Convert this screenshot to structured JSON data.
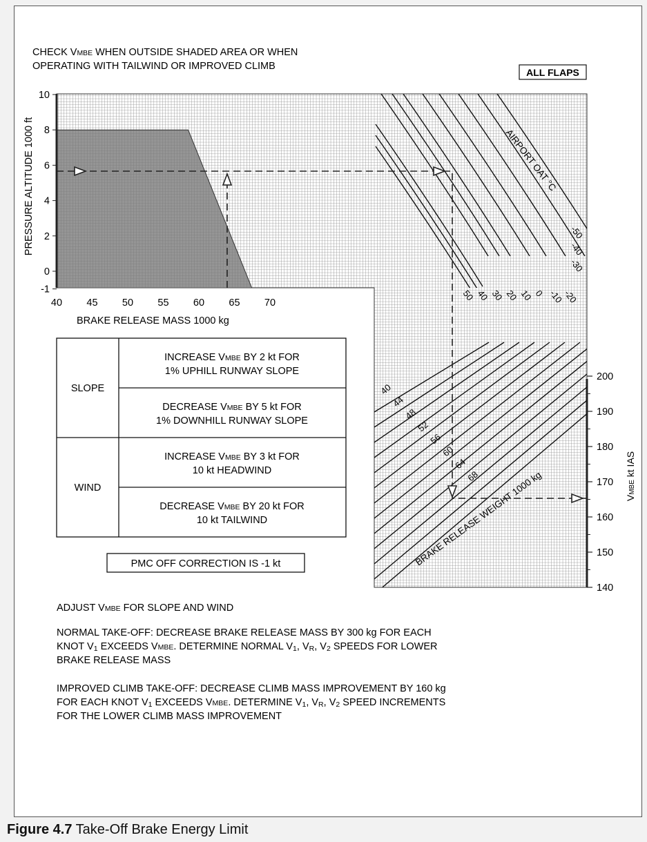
{
  "header": {
    "line1_pre": "CHECK V",
    "line1_sub": "MBE",
    "line1_post": " WHEN OUTSIDE SHADED AREA OR WHEN",
    "line2": "OPERATING WITH TAILWIND OR IMPROVED CLIMB",
    "flaps_box": "ALL FLAPS"
  },
  "chart_data": {
    "type": "line",
    "top_left": {
      "ylabel": "PRESSURE ALTITUDE 1000 ft",
      "xlabel": "BRAKE RELEASE MASS 1000 kg",
      "x_ticks": [
        "40",
        "45",
        "50",
        "55",
        "60",
        "65",
        "70"
      ],
      "y_ticks": [
        "10",
        "8",
        "6",
        "4",
        "2",
        "0",
        "-1"
      ],
      "xlim": [
        40,
        73
      ],
      "ylim": [
        -1,
        10
      ],
      "shaded_area": {
        "x": [
          40,
          58.5,
          67.5,
          40
        ],
        "y": [
          8,
          8,
          -1,
          -1
        ]
      }
    },
    "top_right": {
      "label": "AIRPORT OAT °C",
      "oat_labels_bottom": [
        "50",
        "40",
        "30",
        "20",
        "10",
        "0",
        "-10",
        "-20"
      ],
      "oat_labels_side": [
        "-50",
        "-40",
        "-30"
      ]
    },
    "bottom_right": {
      "label": "BRAKE RELEASE WEIGHT 1000 kg",
      "weight_labels": [
        "40",
        "44",
        "48",
        "52",
        "56",
        "60",
        "64",
        "68"
      ],
      "ylabel_pre": "V",
      "ylabel_sub": "MBE",
      "ylabel_post": " kt IAS",
      "y_ticks": [
        "200",
        "190",
        "180",
        "170",
        "160",
        "150",
        "140"
      ],
      "ylim": [
        140,
        200
      ]
    },
    "example": {
      "pressure_altitude": 5.6,
      "brake_release_mass": 64,
      "vmbe": 165
    }
  },
  "table": {
    "rows": [
      {
        "group": "SLOPE",
        "cells": [
          {
            "pre": "INCREASE V",
            "sub": "MBE",
            "post": " BY 2 kt FOR",
            "line2": "1% UPHILL RUNWAY SLOPE"
          },
          {
            "pre": "DECREASE V",
            "sub": "MBE",
            "post": " BY 5 kt FOR",
            "line2": "1% DOWNHILL RUNWAY SLOPE"
          }
        ]
      },
      {
        "group": "WIND",
        "cells": [
          {
            "pre": "INCREASE V",
            "sub": "MBE",
            "post": " BY 3 kt FOR",
            "line2": "10 kt HEADWIND"
          },
          {
            "pre": "DECREASE V",
            "sub": "MBE",
            "post": " BY 20 kt FOR",
            "line2": "10 kt TAILWIND"
          }
        ]
      }
    ]
  },
  "pmc_box": "PMC OFF CORRECTION IS -1 kt",
  "notes": {
    "adjust_pre": "ADJUST V",
    "adjust_sub": "MBE",
    "adjust_post": " FOR SLOPE AND WIND",
    "normal_l1": "NORMAL TAKE-OFF:   DECREASE BRAKE RELEASE MASS BY 300 kg FOR EACH",
    "normal_l2_a": "KNOT V",
    "normal_l2_b": "1",
    "normal_l2_c": " EXCEEDS V",
    "normal_l2_d": "MBE",
    "normal_l2_e": ".  DETERMINE NORMAL V",
    "normal_l2_f": "1",
    "normal_l2_g": ", V",
    "normal_l2_h": "R",
    "normal_l2_i": ", V",
    "normal_l2_j": "2",
    "normal_l2_k": " SPEEDS FOR LOWER",
    "normal_l3": "BRAKE RELEASE MASS",
    "improved_l1": "IMPROVED CLIMB TAKE-OFF:   DECREASE CLIMB MASS IMPROVEMENT BY 160 kg",
    "improved_l2_a": "FOR EACH KNOT V",
    "improved_l2_b": "1",
    "improved_l2_c": " EXCEEDS V",
    "improved_l2_d": "MBE",
    "improved_l2_e": ".  DETERMINE V",
    "improved_l2_f": "1",
    "improved_l2_g": ", V",
    "improved_l2_h": "R",
    "improved_l2_i": ", V",
    "improved_l2_j": "2",
    "improved_l2_k": " SPEED INCREMENTS",
    "improved_l3": "FOR THE LOWER CLIMB MASS IMPROVEMENT"
  },
  "caption": {
    "label": "Figure 4.7",
    "text": " Take-Off Brake Energy Limit"
  }
}
